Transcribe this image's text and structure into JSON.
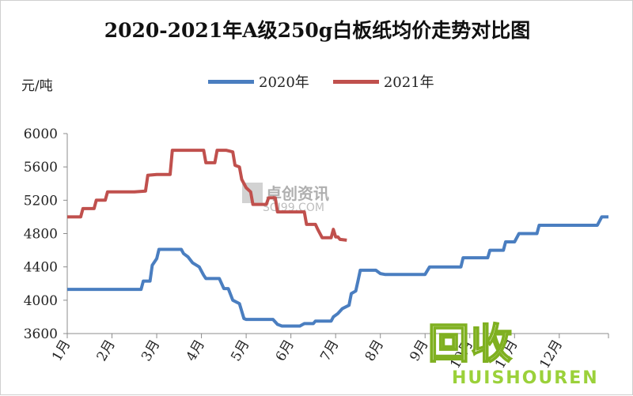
{
  "chart_data": {
    "type": "line",
    "title": "2020-2021年A级250g白板纸均价走势对比图",
    "ylabel": "元/吨",
    "xlabel": "",
    "ylim": [
      3600,
      6000
    ],
    "yticks": [
      3600,
      4000,
      4400,
      4800,
      5200,
      5600,
      6000
    ],
    "categories": [
      "1月",
      "2月",
      "3月",
      "4月",
      "5月",
      "6月",
      "7月",
      "8月",
      "9月",
      "10月",
      "11月",
      "12月"
    ],
    "grid": false,
    "legend_position": "top",
    "series": [
      {
        "name": "2020年",
        "color": "#4a7ec0",
        "points": [
          [
            1.0,
            4130
          ],
          [
            1.5,
            4130
          ],
          [
            2.0,
            4130
          ],
          [
            2.5,
            4130
          ],
          [
            2.65,
            4130
          ],
          [
            2.7,
            4230
          ],
          [
            2.85,
            4230
          ],
          [
            2.9,
            4420
          ],
          [
            3.0,
            4500
          ],
          [
            3.05,
            4610
          ],
          [
            3.3,
            4610
          ],
          [
            3.55,
            4610
          ],
          [
            3.6,
            4560
          ],
          [
            3.7,
            4520
          ],
          [
            3.8,
            4450
          ],
          [
            3.95,
            4400
          ],
          [
            4.05,
            4300
          ],
          [
            4.1,
            4260
          ],
          [
            4.4,
            4260
          ],
          [
            4.5,
            4140
          ],
          [
            4.6,
            4140
          ],
          [
            4.7,
            4000
          ],
          [
            4.85,
            3960
          ],
          [
            4.95,
            3780
          ],
          [
            5.0,
            3770
          ],
          [
            5.3,
            3770
          ],
          [
            5.6,
            3770
          ],
          [
            5.7,
            3710
          ],
          [
            5.8,
            3690
          ],
          [
            6.2,
            3690
          ],
          [
            6.3,
            3720
          ],
          [
            6.5,
            3720
          ],
          [
            6.55,
            3750
          ],
          [
            6.9,
            3750
          ],
          [
            6.95,
            3800
          ],
          [
            7.05,
            3840
          ],
          [
            7.15,
            3900
          ],
          [
            7.3,
            3940
          ],
          [
            7.35,
            4080
          ],
          [
            7.45,
            4110
          ],
          [
            7.5,
            4230
          ],
          [
            7.55,
            4360
          ],
          [
            7.9,
            4360
          ],
          [
            8.0,
            4320
          ],
          [
            8.1,
            4310
          ],
          [
            8.5,
            4310
          ],
          [
            9.0,
            4310
          ],
          [
            9.1,
            4400
          ],
          [
            9.5,
            4400
          ],
          [
            9.8,
            4400
          ],
          [
            9.85,
            4510
          ],
          [
            10.4,
            4510
          ],
          [
            10.45,
            4600
          ],
          [
            10.75,
            4600
          ],
          [
            10.8,
            4700
          ],
          [
            11.0,
            4700
          ],
          [
            11.1,
            4800
          ],
          [
            11.5,
            4800
          ],
          [
            11.55,
            4900
          ],
          [
            12.0,
            4900
          ],
          [
            12.5,
            4900
          ],
          [
            12.85,
            4900
          ],
          [
            12.95,
            5000
          ],
          [
            13.1,
            5000
          ]
        ]
      },
      {
        "name": "2021年",
        "color": "#c0504d",
        "points": [
          [
            1.0,
            5000
          ],
          [
            1.3,
            5000
          ],
          [
            1.35,
            5100
          ],
          [
            1.6,
            5100
          ],
          [
            1.65,
            5200
          ],
          [
            1.85,
            5200
          ],
          [
            1.9,
            5300
          ],
          [
            2.5,
            5300
          ],
          [
            2.75,
            5310
          ],
          [
            2.8,
            5500
          ],
          [
            3.0,
            5510
          ],
          [
            3.3,
            5510
          ],
          [
            3.35,
            5800
          ],
          [
            3.8,
            5800
          ],
          [
            4.05,
            5800
          ],
          [
            4.1,
            5650
          ],
          [
            4.3,
            5650
          ],
          [
            4.35,
            5800
          ],
          [
            4.55,
            5800
          ],
          [
            4.7,
            5780
          ],
          [
            4.75,
            5620
          ],
          [
            4.85,
            5600
          ],
          [
            4.9,
            5450
          ],
          [
            5.0,
            5350
          ],
          [
            5.1,
            5300
          ],
          [
            5.15,
            5150
          ],
          [
            5.45,
            5150
          ],
          [
            5.5,
            5230
          ],
          [
            5.65,
            5230
          ],
          [
            5.7,
            5060
          ],
          [
            6.0,
            5060
          ],
          [
            6.3,
            5060
          ],
          [
            6.35,
            4910
          ],
          [
            6.55,
            4910
          ],
          [
            6.6,
            4850
          ],
          [
            6.7,
            4750
          ],
          [
            6.9,
            4750
          ],
          [
            6.95,
            4850
          ],
          [
            7.0,
            4760
          ],
          [
            7.05,
            4760
          ],
          [
            7.1,
            4730
          ],
          [
            7.25,
            4720
          ]
        ]
      }
    ]
  },
  "watermarks": {
    "corner_logo": "回收",
    "corner_sub": "HUISHOUREN",
    "center_text": "卓创资讯",
    "center_sub": "SCI99.COM"
  }
}
